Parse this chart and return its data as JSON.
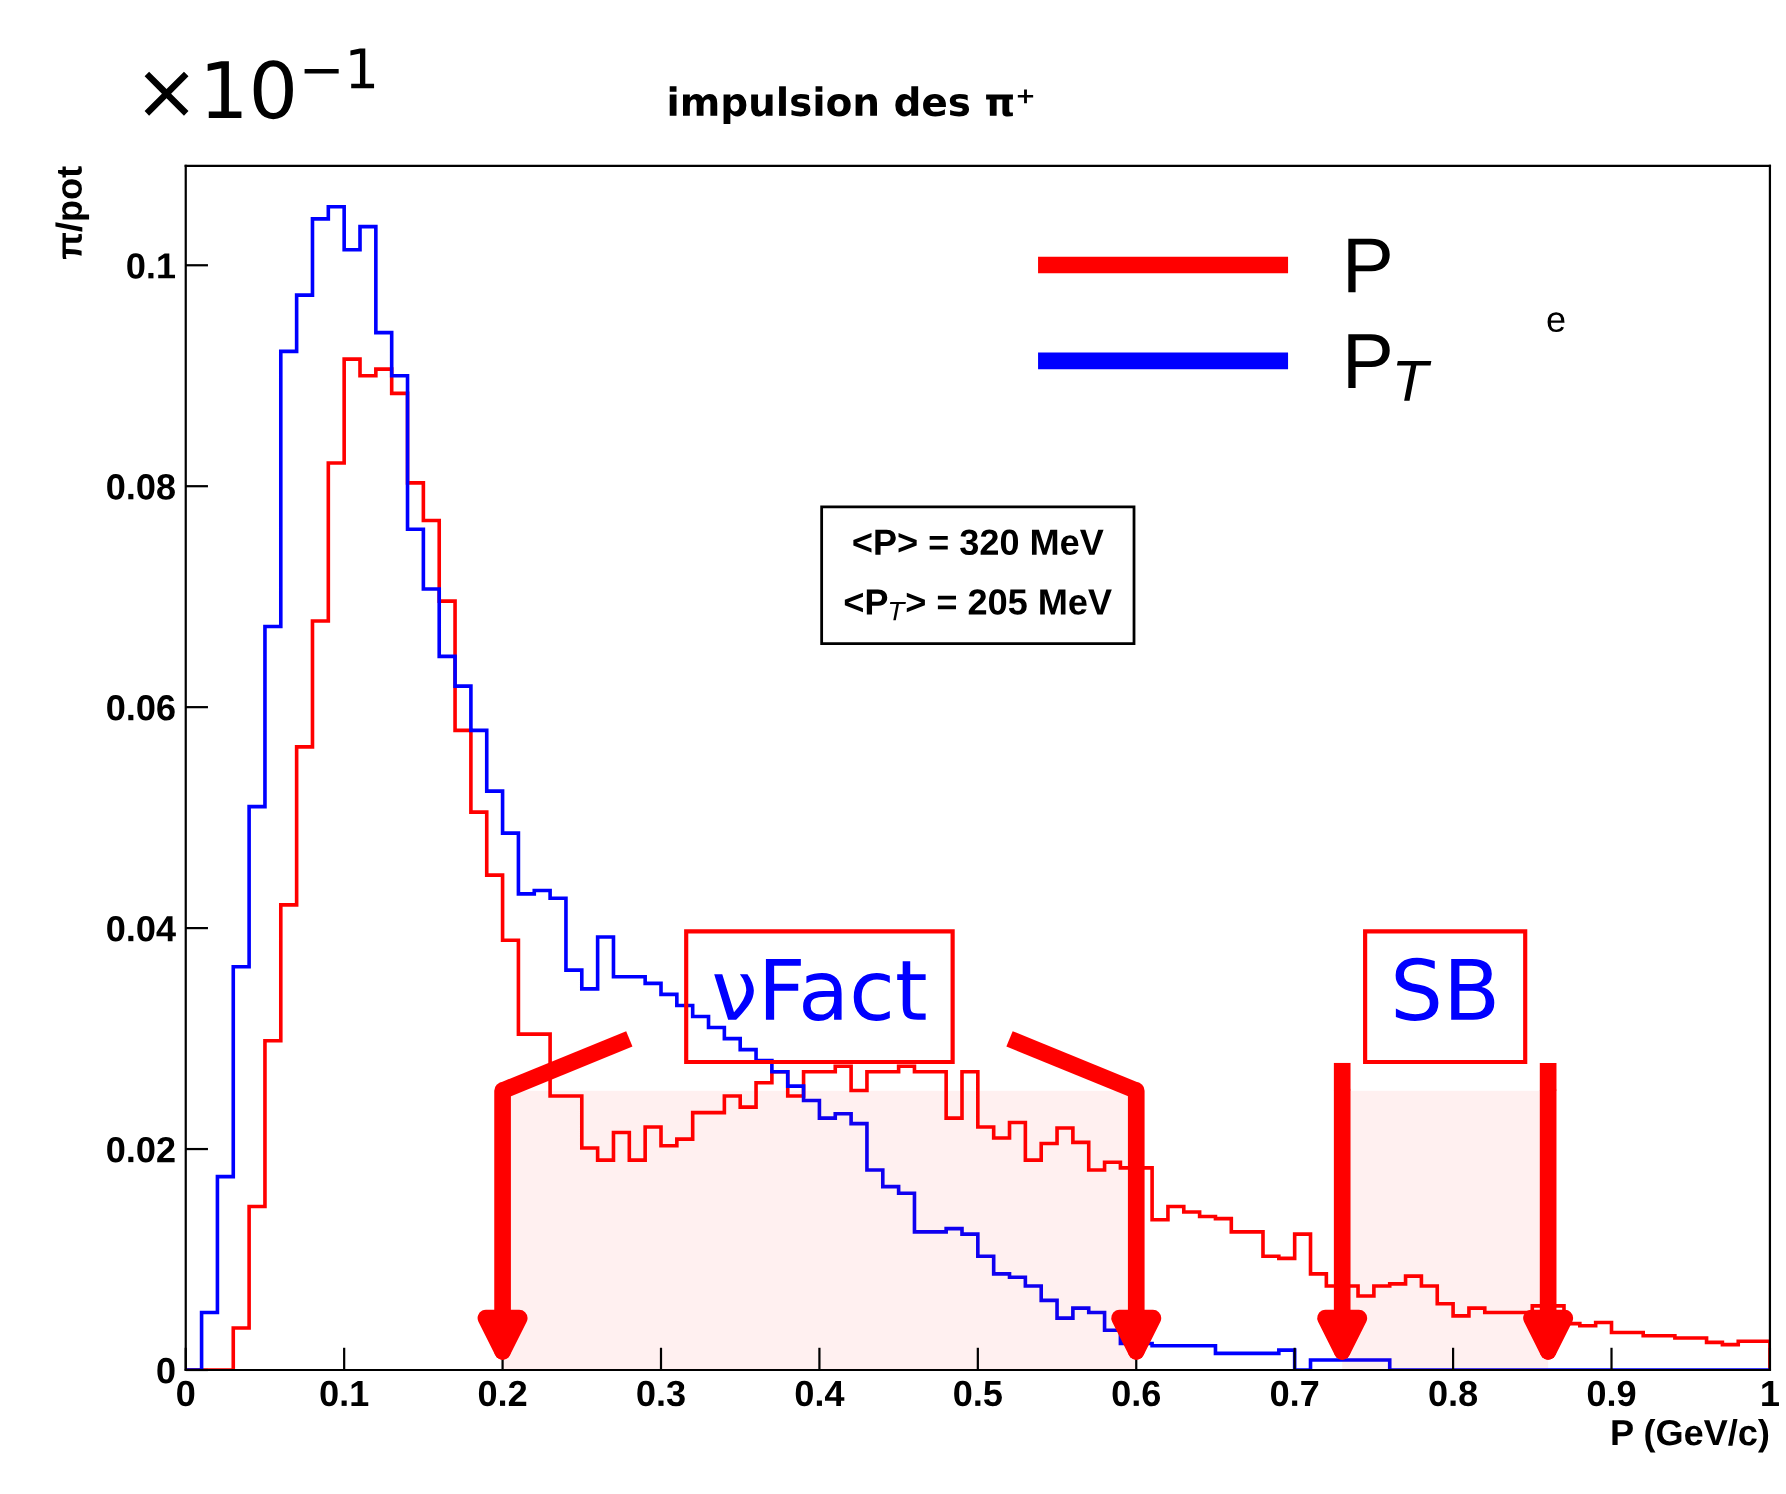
{
  "chart_data": {
    "type": "histogram",
    "title": "impulsion des π⁺",
    "xlabel": "P (GeV/c)",
    "ylabel": "π/pot",
    "bins": [
      0,
      0.01,
      0.02,
      0.03,
      0.04,
      0.05,
      0.06,
      0.07,
      0.08,
      0.09,
      0.1,
      0.11,
      0.12,
      0.13,
      0.14,
      0.15,
      0.16,
      0.17,
      0.18,
      0.19,
      0.2,
      0.21,
      0.22,
      0.23,
      0.24,
      0.25,
      0.26,
      0.27,
      0.28,
      0.29,
      0.3,
      0.31,
      0.32,
      0.33,
      0.34,
      0.35,
      0.36,
      0.37,
      0.38,
      0.39,
      0.4,
      0.41,
      0.42,
      0.43,
      0.44,
      0.45,
      0.46,
      0.47,
      0.48,
      0.49,
      0.5,
      0.51,
      0.52,
      0.53,
      0.54,
      0.55,
      0.56,
      0.57,
      0.58,
      0.59,
      0.6,
      0.61,
      0.62,
      0.63,
      0.64,
      0.65,
      0.66,
      0.67,
      0.68,
      0.69,
      0.7,
      0.71,
      0.72,
      0.73,
      0.74,
      0.75,
      0.76,
      0.77,
      0.78,
      0.79,
      0.8,
      0.81,
      0.82,
      0.83,
      0.84,
      0.85,
      0.86,
      0.87,
      0.88,
      0.89,
      0.9,
      0.91,
      0.92,
      0.93,
      0.94,
      0.95,
      0.96,
      0.97,
      0.98,
      0.99,
      1
    ],
    "series": [
      {
        "name": "P",
        "color": "#ff0000",
        "values": [
          0,
          0,
          0,
          0.0038,
          0.0148,
          0.0298,
          0.0421,
          0.0564,
          0.0678,
          0.0821,
          0.0915,
          0.09,
          0.0906,
          0.0884,
          0.0803,
          0.0769,
          0.0696,
          0.0579,
          0.0505,
          0.0448,
          0.0389,
          0.0304,
          0.0304,
          0.0248,
          0.0248,
          0.0201,
          0.019,
          0.0215,
          0.019,
          0.022,
          0.0203,
          0.0209,
          0.0233,
          0.0233,
          0.0248,
          0.0238,
          0.026,
          0.027,
          0.0248,
          0.027,
          0.027,
          0.0275,
          0.0253,
          0.027,
          0.027,
          0.0275,
          0.027,
          0.027,
          0.0228,
          0.027,
          0.022,
          0.021,
          0.0224,
          0.019,
          0.0205,
          0.0219,
          0.0206,
          0.0181,
          0.0188,
          0.0183,
          0.0183,
          0.0136,
          0.0148,
          0.0143,
          0.0139,
          0.0137,
          0.0125,
          0.0125,
          0.0103,
          0.0101,
          0.0123,
          0.0087,
          0.0076,
          0.0076,
          0.0067,
          0.0076,
          0.0078,
          0.0085,
          0.0076,
          0.006,
          0.0049,
          0.0056,
          0.0052,
          0.0052,
          0.0052,
          0.0058,
          0.0058,
          0.0042,
          0.004,
          0.0043,
          0.0034,
          0.0034,
          0.0031,
          0.0031,
          0.0029,
          0.0029,
          0.0025,
          0.0023,
          0.0026,
          0.0026
        ]
      },
      {
        "name": "P$_{T}$",
        "color": "#0000ff",
        "values": [
          0,
          0.0052,
          0.0175,
          0.0365,
          0.051,
          0.0673,
          0.0922,
          0.0973,
          0.1042,
          0.1053,
          0.1014,
          0.1035,
          0.0939,
          0.09,
          0.0761,
          0.0707,
          0.0646,
          0.0619,
          0.0579,
          0.0524,
          0.0486,
          0.0431,
          0.0434,
          0.0427,
          0.0362,
          0.0345,
          0.0392,
          0.0356,
          0.0356,
          0.035,
          0.034,
          0.033,
          0.032,
          0.031,
          0.03,
          0.029,
          0.028,
          0.027,
          0.0257,
          0.0244,
          0.0228,
          0.0232,
          0.0223,
          0.0181,
          0.0166,
          0.016,
          0.0125,
          0.0125,
          0.0128,
          0.0123,
          0.0103,
          0.0087,
          0.0084,
          0.0076,
          0.0063,
          0.0047,
          0.0056,
          0.0052,
          0.0036,
          0.0024,
          0.0024,
          0.0022,
          0.0022,
          0.0022,
          0.0022,
          0.0015,
          0.0015,
          0.0015,
          0.0015,
          0.0018,
          0,
          0.0009,
          0.0009,
          0.0009,
          0.0009,
          0.0009,
          0,
          0,
          0,
          0,
          0,
          0,
          0,
          0,
          0,
          0,
          0,
          0,
          0,
          0,
          0,
          0,
          0,
          0,
          0,
          0,
          0,
          0,
          0,
          0
        ]
      }
    ],
    "xlim": [
      0,
      1
    ],
    "xticks": [
      0,
      0.1,
      0.2,
      0.3,
      0.4,
      0.5,
      0.6,
      0.7,
      0.8,
      0.9,
      1
    ],
    "ylim": [
      0,
      0.109
    ],
    "yticks": [
      0,
      0.02,
      0.04,
      0.06,
      0.08,
      0.1
    ],
    "bands": [
      {
        "axis": "x",
        "from": 0.2,
        "to": 0.6,
        "label": "νFact",
        "color": "#ff0000"
      },
      {
        "axis": "x",
        "from": 0.73,
        "to": 0.86,
        "label": "SB",
        "color": "#ff0000"
      }
    ],
    "annotations": [
      "×10$^{−1}$",
      "<P> = 320 MeV",
      "<P$_{T}$> = 205 MeV",
      "e"
    ],
    "legend": "top right",
    "grid": false
  }
}
